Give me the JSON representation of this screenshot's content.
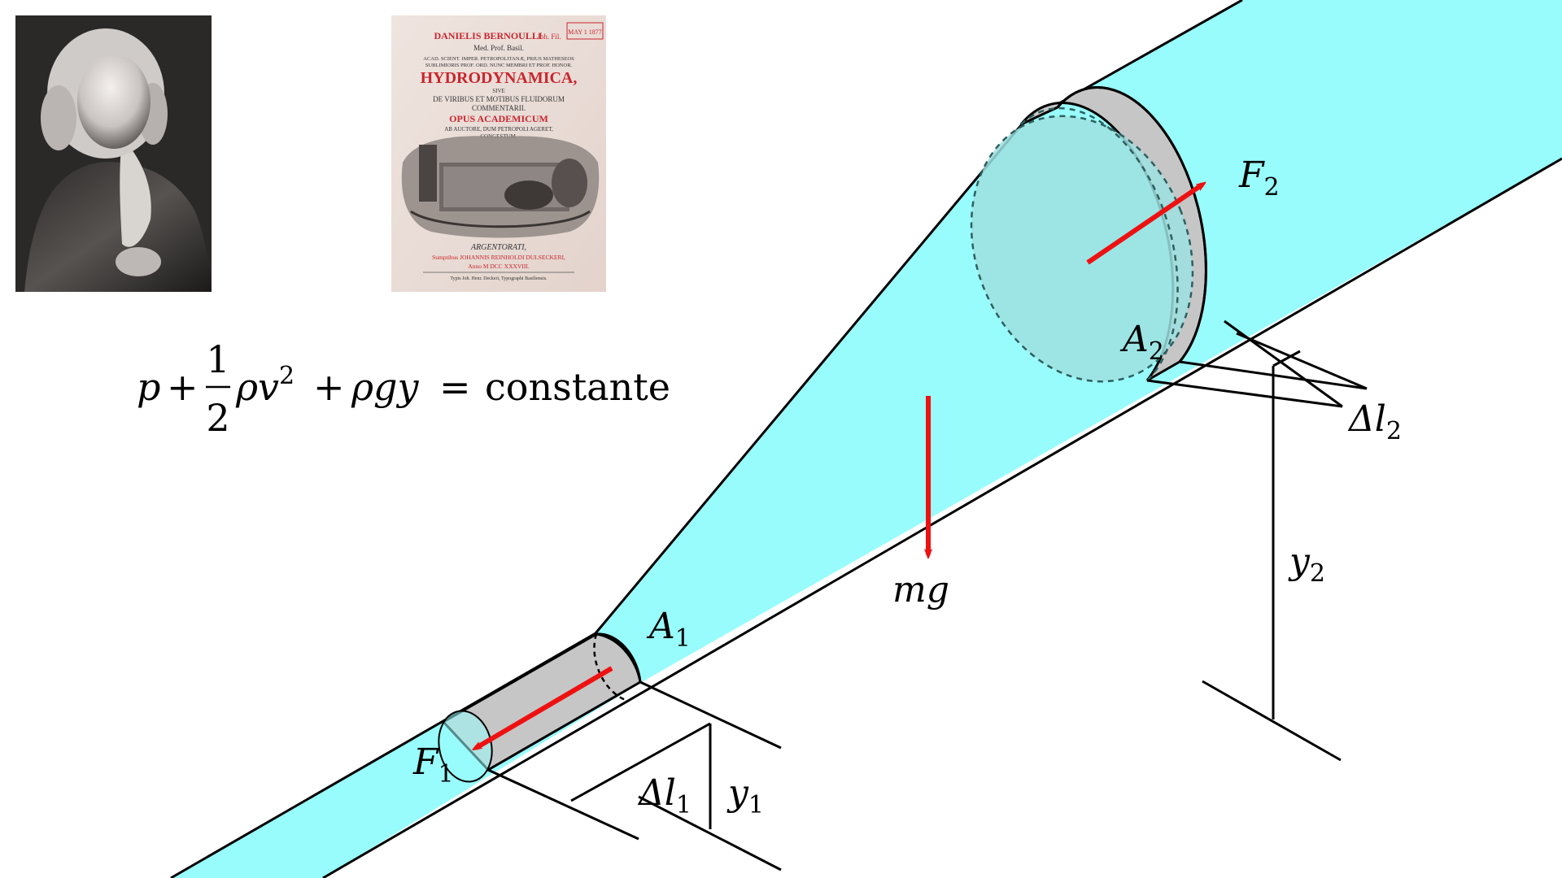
{
  "equation": {
    "p": "p",
    "plus1": "+",
    "frac_num": "1",
    "frac_den": "2",
    "rho_v2": "ρv",
    "exp": "2",
    "plus2": "+",
    "rho_g_y": "ρgy",
    "equals": "=",
    "rhs": "constante"
  },
  "labels": {
    "A1": {
      "base": "A",
      "sub": "1"
    },
    "A2": {
      "base": "A",
      "sub": "2"
    },
    "F1": {
      "base": "F",
      "sub": "1"
    },
    "F2": {
      "base": "F",
      "sub": "2"
    },
    "mg": "mg",
    "dl1": {
      "base": "Δl",
      "sub": "1"
    },
    "dl2": {
      "base": "Δl",
      "sub": "2"
    },
    "y1": {
      "base": "y",
      "sub": "1"
    },
    "y2": {
      "base": "y",
      "sub": "2"
    }
  },
  "book": {
    "author": "DANIELIS BERNOULLI",
    "author_suffix": "Joh. Fil.",
    "line2": "Med. Prof. Basil.",
    "line3": "ACAD. SCIENT. IMPER. PETROPOLITANÆ, PRIUS MATHESEOS",
    "line4": "SUBLIMIORIS PROF. ORD. NUNC MEMBRI ET PROF. HONOR.",
    "title": "HYDRODYNAMICA,",
    "sive": "SIVE",
    "sub1": "DE VIRIBUS ET MOTIBUS FLUIDORUM",
    "sub2": "COMMENTARII.",
    "opus": "OPUS ACADEMICUM",
    "auct1": "AB AUCTORE, DUM PETROPOLI AGERET,",
    "auct2": "CONGESTUM.",
    "city": "ARGENTORATI,",
    "printer": "Sumptibus JOHANNIS REINHOLDI DULSECKERI,",
    "year": "Anno M DCC XXXVIII.",
    "typo": "Typis Joh. Henr. Deckeri, Typographi Basiliensis.",
    "stamp": "MAY 1 1877"
  },
  "colors": {
    "fluid": "#99FCFC",
    "plug": "#C6C6C6",
    "arrow": "#EE1111",
    "ink": "#000000",
    "dashed": "#2E5F5F",
    "book_red": "#C9262E"
  }
}
